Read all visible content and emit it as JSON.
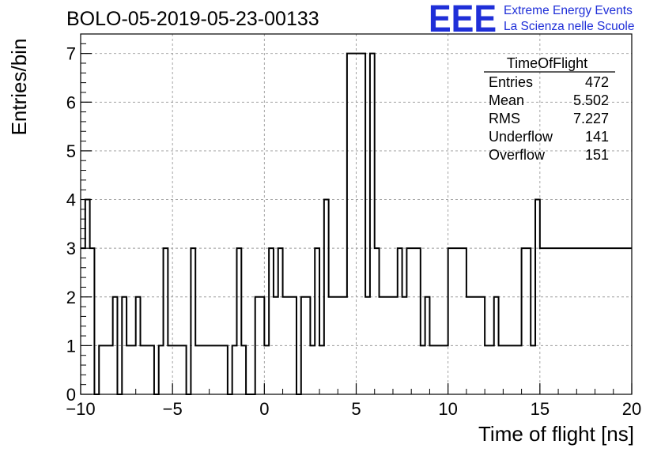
{
  "chart_data": {
    "type": "histogram",
    "title": "BOLO-05-2019-05-23-00133",
    "xlabel": "Time of flight [ns]",
    "ylabel": "Entries/bin",
    "xlim": [
      -10,
      20
    ],
    "ylim": [
      0,
      7.4
    ],
    "grid": true,
    "bin_width": 0.25,
    "x_ticks": [
      "−10",
      "−5",
      "0",
      "5",
      "10",
      "15",
      "20"
    ],
    "y_ticks": [
      "0",
      "1",
      "2",
      "3",
      "4",
      "5",
      "6",
      "7"
    ],
    "bin_low_edges": [
      -10.0,
      -9.75,
      -9.5,
      -9.25,
      -9.0,
      -8.75,
      -8.5,
      -8.25,
      -8.0,
      -7.75,
      -7.5,
      -7.25,
      -7.0,
      -6.75,
      -6.5,
      -6.25,
      -6.0,
      -5.75,
      -5.5,
      -5.25,
      -5.0,
      -4.75,
      -4.5,
      -4.25,
      -4.0,
      -3.75,
      -3.5,
      -3.25,
      -3.0,
      -2.75,
      -2.5,
      -2.25,
      -2.0,
      -1.75,
      -1.5,
      -1.25,
      -1.0,
      -0.75,
      -0.5,
      -0.25,
      0.0,
      0.25,
      0.5,
      0.75,
      1.0,
      1.25,
      1.5,
      1.75,
      2.0,
      2.25,
      2.5,
      2.75,
      3.0,
      3.25,
      3.5,
      3.75,
      4.0,
      4.25,
      4.5,
      4.75,
      5.0,
      5.25,
      5.5,
      5.75,
      6.0,
      6.25,
      6.5,
      6.75,
      7.0,
      7.25,
      7.5,
      7.75,
      8.0,
      8.25,
      8.5,
      8.75,
      9.0,
      9.25,
      9.5,
      9.75,
      10.0,
      10.25,
      10.5,
      10.75,
      11.0,
      11.25,
      11.5,
      11.75,
      12.0,
      12.25,
      12.5,
      12.75,
      13.0,
      13.25,
      13.5,
      13.75,
      14.0,
      14.25,
      14.5,
      14.75,
      15.0,
      15.25,
      15.5,
      15.75,
      16.0,
      16.25,
      16.5,
      16.75,
      17.0,
      17.25,
      17.5,
      17.75,
      18.0,
      18.25,
      18.5,
      18.75,
      19.0,
      19.25,
      19.5,
      19.75
    ],
    "counts": [
      3,
      4,
      3,
      0,
      1,
      1,
      1,
      2,
      0,
      2,
      1,
      1,
      2,
      1,
      1,
      1,
      0,
      1,
      3,
      1,
      1,
      1,
      1,
      0,
      3,
      1,
      1,
      1,
      1,
      1,
      1,
      1,
      0,
      1,
      3,
      1,
      0,
      0,
      2,
      2,
      1,
      3,
      2,
      3,
      2,
      2,
      2,
      0,
      2,
      2,
      1,
      3,
      1,
      4,
      2,
      2,
      2,
      2,
      7,
      7,
      7,
      7,
      2,
      7,
      3,
      2,
      2,
      2,
      2,
      3,
      2,
      3,
      3,
      3,
      1,
      2,
      1,
      1,
      1,
      1,
      3,
      3,
      3,
      3,
      2,
      2,
      2,
      2,
      1,
      1,
      2,
      1,
      1,
      1,
      1,
      1,
      3,
      3,
      1,
      4,
      3,
      3,
      3,
      3,
      3,
      3,
      3,
      3,
      3,
      3,
      3,
      3,
      3,
      3,
      3,
      3,
      3,
      3,
      3,
      3
    ],
    "counts_note": ""
  },
  "stats_box": {
    "title": "TimeOfFlight",
    "rows": [
      {
        "label": "Entries",
        "value": "472"
      },
      {
        "label": "Mean",
        "value": "5.502"
      },
      {
        "label": "RMS",
        "value": "7.227"
      },
      {
        "label": "Underflow",
        "value": "141"
      },
      {
        "label": "Overflow",
        "value": "151"
      }
    ]
  },
  "logo": {
    "mark": "EEE",
    "line1": "Extreme Energy Events",
    "line2": "La Scienza nelle Scuole",
    "color": "#1f2fd8"
  }
}
